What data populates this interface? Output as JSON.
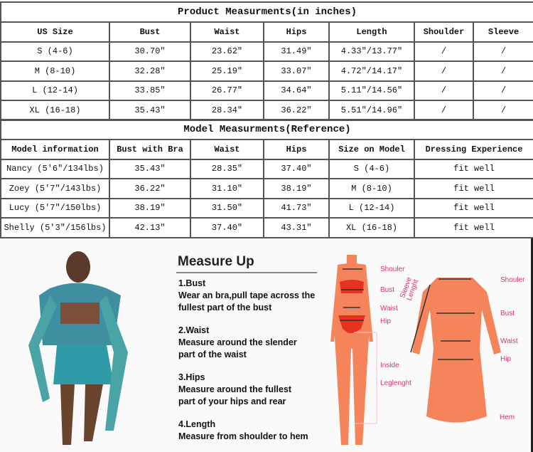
{
  "product": {
    "title": "Product Measurments(in inches)",
    "headers": [
      "US Size",
      "Bust",
      "Waist",
      "Hips",
      "Length",
      "Shoulder",
      "Sleeve"
    ],
    "rows": [
      [
        "S (4-6)",
        "30.70″",
        "23.62″",
        "31.49″",
        "4.33″/13.77″",
        "/",
        "/"
      ],
      [
        "M (8-10)",
        "32.28″",
        "25.19″",
        "33.07″",
        "4.72″/14.17″",
        "/",
        "/"
      ],
      [
        "L (12-14)",
        "33.85″",
        "26.77″",
        "34.64″",
        "5.11″/14.56″",
        "/",
        "/"
      ],
      [
        "XL (16-18)",
        "35.43″",
        "28.34″",
        "36.22″",
        "5.51″/14.96″",
        "/",
        "/"
      ]
    ]
  },
  "model": {
    "title": "Model Measurments(Reference)",
    "headers": [
      "Model information",
      "Bust with Bra",
      "Waist",
      "Hips",
      "Size on Model",
      "Dressing Experience"
    ],
    "rows": [
      [
        "Nancy (5'6″/134lbs)",
        "35.43″",
        "28.35″",
        "37.40″",
        "S (4-6)",
        "fit well"
      ],
      [
        "Zoey (5'7″/143lbs)",
        "36.22″",
        "31.10″",
        "38.19″",
        "M (8-10)",
        "fit well"
      ],
      [
        "Lucy (5'7″/150lbs)",
        "38.19″",
        "31.50″",
        "41.73″",
        "L (12-14)",
        "fit well"
      ],
      [
        "Shelly (5'3″/156lbs)",
        "42.13″",
        "37.40″",
        "43.31″",
        "XL (16-18)",
        "fit well"
      ]
    ]
  },
  "guide": {
    "title": "Measure Up",
    "steps": [
      {
        "h": "1.Bust",
        "t": "Wear an bra,pull tape across the fullest part of the bust"
      },
      {
        "h": "2.Waist",
        "t": "Measure around the slender part of the waist"
      },
      {
        "h": "3.Hips",
        "t": "Measure around the fullest part of your hips and rear"
      },
      {
        "h": "4.Length",
        "t": "Measure from shoulder to hem"
      }
    ],
    "body_labels": [
      "Shouler",
      "Bust",
      "Waist",
      "Hip",
      "Inside",
      "Leglenght"
    ],
    "dress_labels": [
      "Shouler",
      "Bust",
      "Waist",
      "Hip",
      "Hem",
      "Sleeve",
      "Lenght"
    ]
  },
  "colors": {
    "figure": "#f5845a",
    "label": "#e0306e",
    "bikini": "#e8321e"
  }
}
